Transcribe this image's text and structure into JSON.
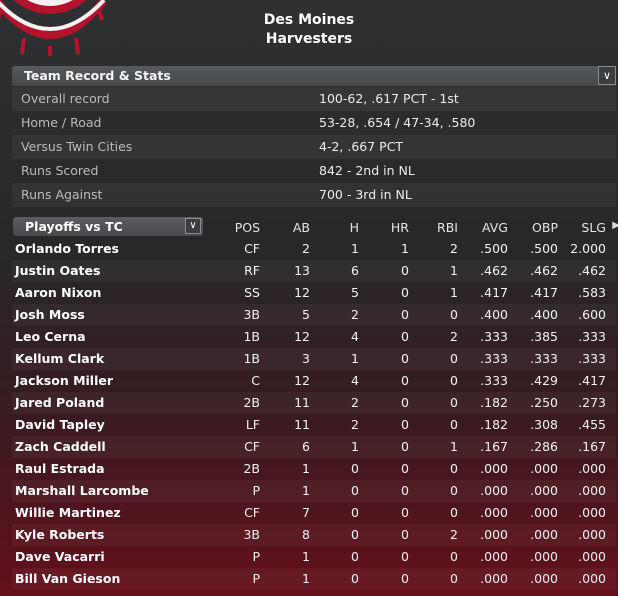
{
  "header": {
    "city": "Des Moines",
    "name": "Harvesters"
  },
  "team_record": {
    "title": "Team Record & Stats",
    "collapse_icon": "chevron-down-icon",
    "rows": [
      {
        "label": "Overall record",
        "value": "100-62, .617 PCT - 1st"
      },
      {
        "label": "Home / Road",
        "value": "53-28, .654 / 47-34, .580"
      },
      {
        "label": "Versus Twin Cities",
        "value": "4-2, .667 PCT"
      },
      {
        "label": "Runs Scored",
        "value": "842 - 2nd in NL"
      },
      {
        "label": "Runs Against",
        "value": "700 - 3rd in NL"
      }
    ]
  },
  "stats_table": {
    "dropdown_label": "Playoffs vs TC",
    "dropdown_icon": "chevron-down-icon",
    "columns": [
      "POS",
      "AB",
      "H",
      "HR",
      "RBI",
      "AVG",
      "OBP",
      "SLG"
    ],
    "players": [
      [
        "Orlando Torres",
        "CF",
        "2",
        "1",
        "1",
        "2",
        ".500",
        ".500",
        "2.000"
      ],
      [
        "Justin Oates",
        "RF",
        "13",
        "6",
        "0",
        "1",
        ".462",
        ".462",
        ".462"
      ],
      [
        "Aaron Nixon",
        "SS",
        "12",
        "5",
        "0",
        "1",
        ".417",
        ".417",
        ".583"
      ],
      [
        "Josh Moss",
        "3B",
        "5",
        "2",
        "0",
        "0",
        ".400",
        ".400",
        ".600"
      ],
      [
        "Leo Cerna",
        "1B",
        "12",
        "4",
        "0",
        "2",
        ".333",
        ".385",
        ".333"
      ],
      [
        "Kellum Clark",
        "1B",
        "3",
        "1",
        "0",
        "0",
        ".333",
        ".333",
        ".333"
      ],
      [
        "Jackson Miller",
        "C",
        "12",
        "4",
        "0",
        "0",
        ".333",
        ".429",
        ".417"
      ],
      [
        "Jared Poland",
        "2B",
        "11",
        "2",
        "0",
        "0",
        ".182",
        ".250",
        ".273"
      ],
      [
        "David Tapley",
        "LF",
        "11",
        "2",
        "0",
        "0",
        ".182",
        ".308",
        ".455"
      ],
      [
        "Zach Caddell",
        "CF",
        "6",
        "1",
        "0",
        "1",
        ".167",
        ".286",
        ".167"
      ],
      [
        "Raul Estrada",
        "2B",
        "1",
        "0",
        "0",
        "0",
        ".000",
        ".000",
        ".000"
      ],
      [
        "Marshall Larcombe",
        "P",
        "1",
        "0",
        "0",
        "0",
        ".000",
        ".000",
        ".000"
      ],
      [
        "Willie Martinez",
        "CF",
        "7",
        "0",
        "0",
        "0",
        ".000",
        ".000",
        ".000"
      ],
      [
        "Kyle Roberts",
        "3B",
        "8",
        "0",
        "0",
        "2",
        ".000",
        ".000",
        ".000"
      ],
      [
        "Dave Vacarri",
        "P",
        "1",
        "0",
        "0",
        "0",
        ".000",
        ".000",
        ".000"
      ],
      [
        "Bill Van Gieson",
        "P",
        "1",
        "0",
        "0",
        "0",
        ".000",
        ".000",
        ".000"
      ]
    ]
  },
  "colors": {
    "bunting_red": "#b3142b",
    "bunting_blue": "#1f3d8c",
    "bunting_white": "#f2f2f2"
  }
}
